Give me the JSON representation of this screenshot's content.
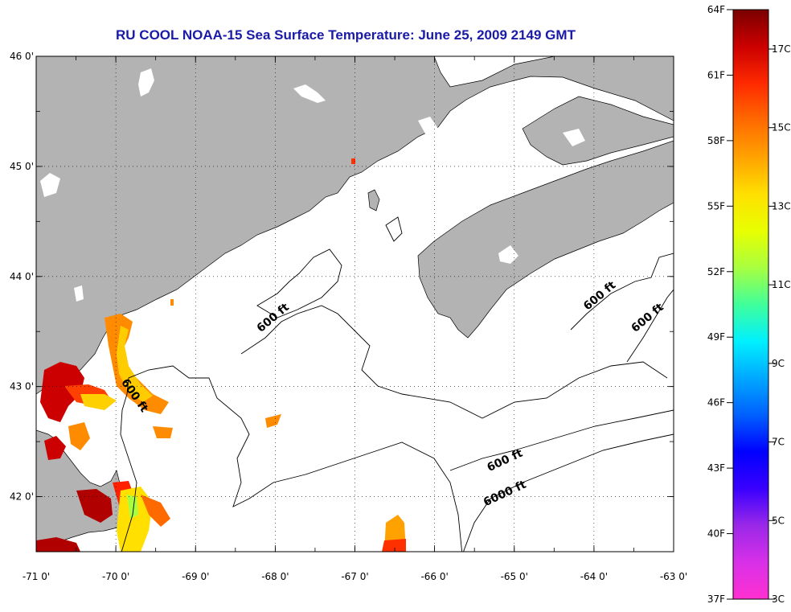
{
  "title": "RU COOL  NOAA-15  Sea Surface Temperature:  June 25, 2009 2149 GMT",
  "map": {
    "lon_range": [
      -71,
      -63
    ],
    "lat_range": [
      41.5,
      46
    ],
    "lat_ticks": [
      {
        "value": 46,
        "label": "46 0'"
      },
      {
        "value": 45,
        "label": "45 0'"
      },
      {
        "value": 44,
        "label": "44 0'"
      },
      {
        "value": 43,
        "label": "43 0'"
      },
      {
        "value": 42,
        "label": "42 0'"
      }
    ],
    "lon_ticks": [
      {
        "value": -71,
        "label": "-71 0'"
      },
      {
        "value": -70,
        "label": "-70 0'"
      },
      {
        "value": -69,
        "label": "-69 0'"
      },
      {
        "value": -68,
        "label": "-68 0'"
      },
      {
        "value": -67,
        "label": "-67 0'"
      },
      {
        "value": -66,
        "label": "-66 0'"
      },
      {
        "value": -65,
        "label": "-65 0'"
      },
      {
        "value": -64,
        "label": "-64 0'"
      },
      {
        "value": -63,
        "label": "-63 0'"
      }
    ],
    "grid": "dotted",
    "land_color": "#b3b3b3",
    "ocean_color": "#ffffff"
  },
  "contour_labels": [
    {
      "text": "600 ft",
      "lon": -68.0,
      "lat": 43.6
    },
    {
      "text": "600 ft",
      "lon": -69.8,
      "lat": 42.9
    },
    {
      "text": "600 ft",
      "lon": -63.9,
      "lat": 43.8
    },
    {
      "text": "600 ft",
      "lon": -63.3,
      "lat": 43.6
    },
    {
      "text": "600 ft",
      "lon": -65.1,
      "lat": 42.3
    },
    {
      "text": "6000 ft",
      "lon": -65.1,
      "lat": 42.0
    }
  ],
  "colorbar": {
    "top_colors": [
      "#7a0000",
      "#cc0000",
      "#ff2a00",
      "#ff6a00",
      "#ffa200",
      "#ffe000",
      "#e8ff00",
      "#a8ff40",
      "#40ff9a",
      "#00f0ff",
      "#00a8ff",
      "#0060ff",
      "#0000ff",
      "#3a00ff",
      "#9a28e8",
      "#d830e8",
      "#ff30d0"
    ],
    "f_labels": [
      "64F",
      "61F",
      "58F",
      "55F",
      "52F",
      "49F",
      "46F",
      "43F",
      "40F",
      "37F"
    ],
    "c_labels": [
      "17C",
      "15C",
      "13C",
      "11C",
      "9C",
      "7C",
      "5C",
      "3C"
    ]
  }
}
